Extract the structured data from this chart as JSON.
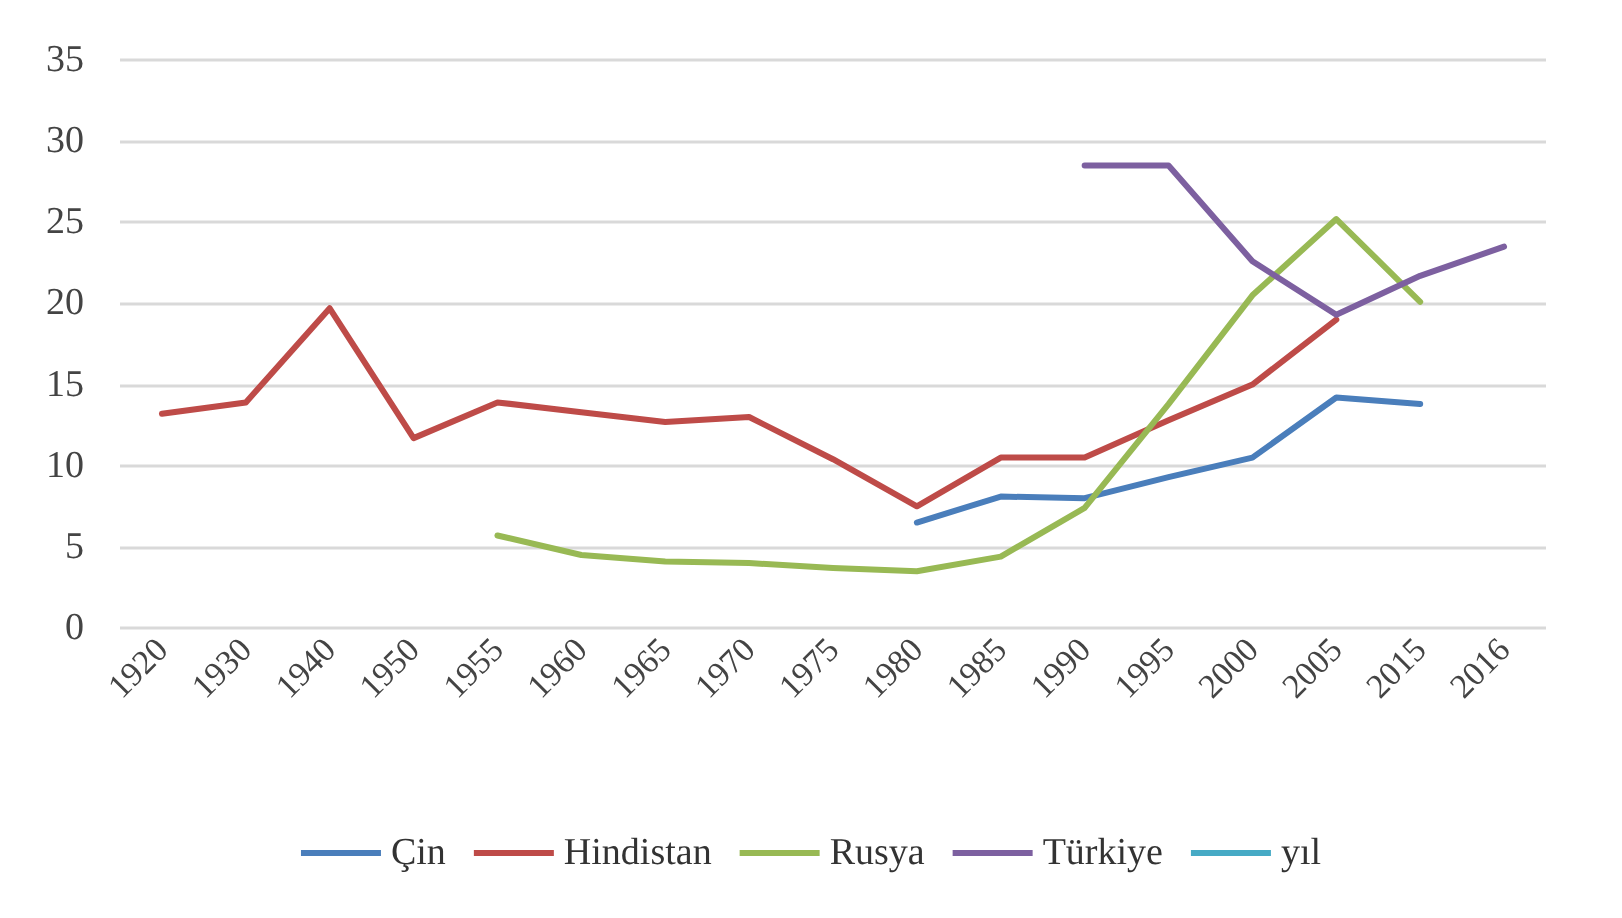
{
  "chart_data": {
    "type": "line",
    "categories": [
      "1920",
      "1930",
      "1940",
      "1950",
      "1955",
      "1960",
      "1965",
      "1970",
      "1975",
      "1980",
      "1985",
      "1990",
      "1995",
      "2000",
      "2005",
      "2015",
      "2016"
    ],
    "series": [
      {
        "name": "Çin",
        "color": "#4a7ebb",
        "values": [
          null,
          null,
          null,
          null,
          null,
          null,
          null,
          null,
          null,
          6.5,
          8.1,
          8.0,
          9.3,
          10.5,
          14.2,
          13.8,
          null
        ]
      },
      {
        "name": "Hindistan",
        "color": "#be4b48",
        "values": [
          13.2,
          13.9,
          19.7,
          11.7,
          13.9,
          13.3,
          12.7,
          13.0,
          10.4,
          7.5,
          10.5,
          10.5,
          12.8,
          15.0,
          19.0,
          null,
          null
        ]
      },
      {
        "name": "Rusya",
        "color": "#98b954",
        "values": [
          null,
          null,
          null,
          null,
          5.7,
          4.5,
          4.1,
          4.0,
          3.7,
          3.5,
          4.4,
          7.4,
          13.8,
          20.5,
          25.2,
          20.1,
          null
        ]
      },
      {
        "name": "Türkiye",
        "color": "#7d60a0",
        "values": [
          null,
          null,
          null,
          null,
          null,
          null,
          null,
          null,
          null,
          null,
          null,
          28.5,
          28.5,
          22.6,
          19.3,
          21.7,
          23.5
        ]
      },
      {
        "name": "yıl",
        "color": "#46aac5",
        "values": [
          null,
          null,
          null,
          null,
          null,
          null,
          null,
          null,
          null,
          null,
          null,
          null,
          null,
          null,
          null,
          null,
          null
        ]
      }
    ],
    "ylim": [
      0,
      35
    ],
    "yticks": [
      0,
      5,
      10,
      15,
      20,
      25,
      30,
      35
    ],
    "grid": "y",
    "legend": "bottom",
    "marker": "none",
    "line_style": "solid"
  }
}
